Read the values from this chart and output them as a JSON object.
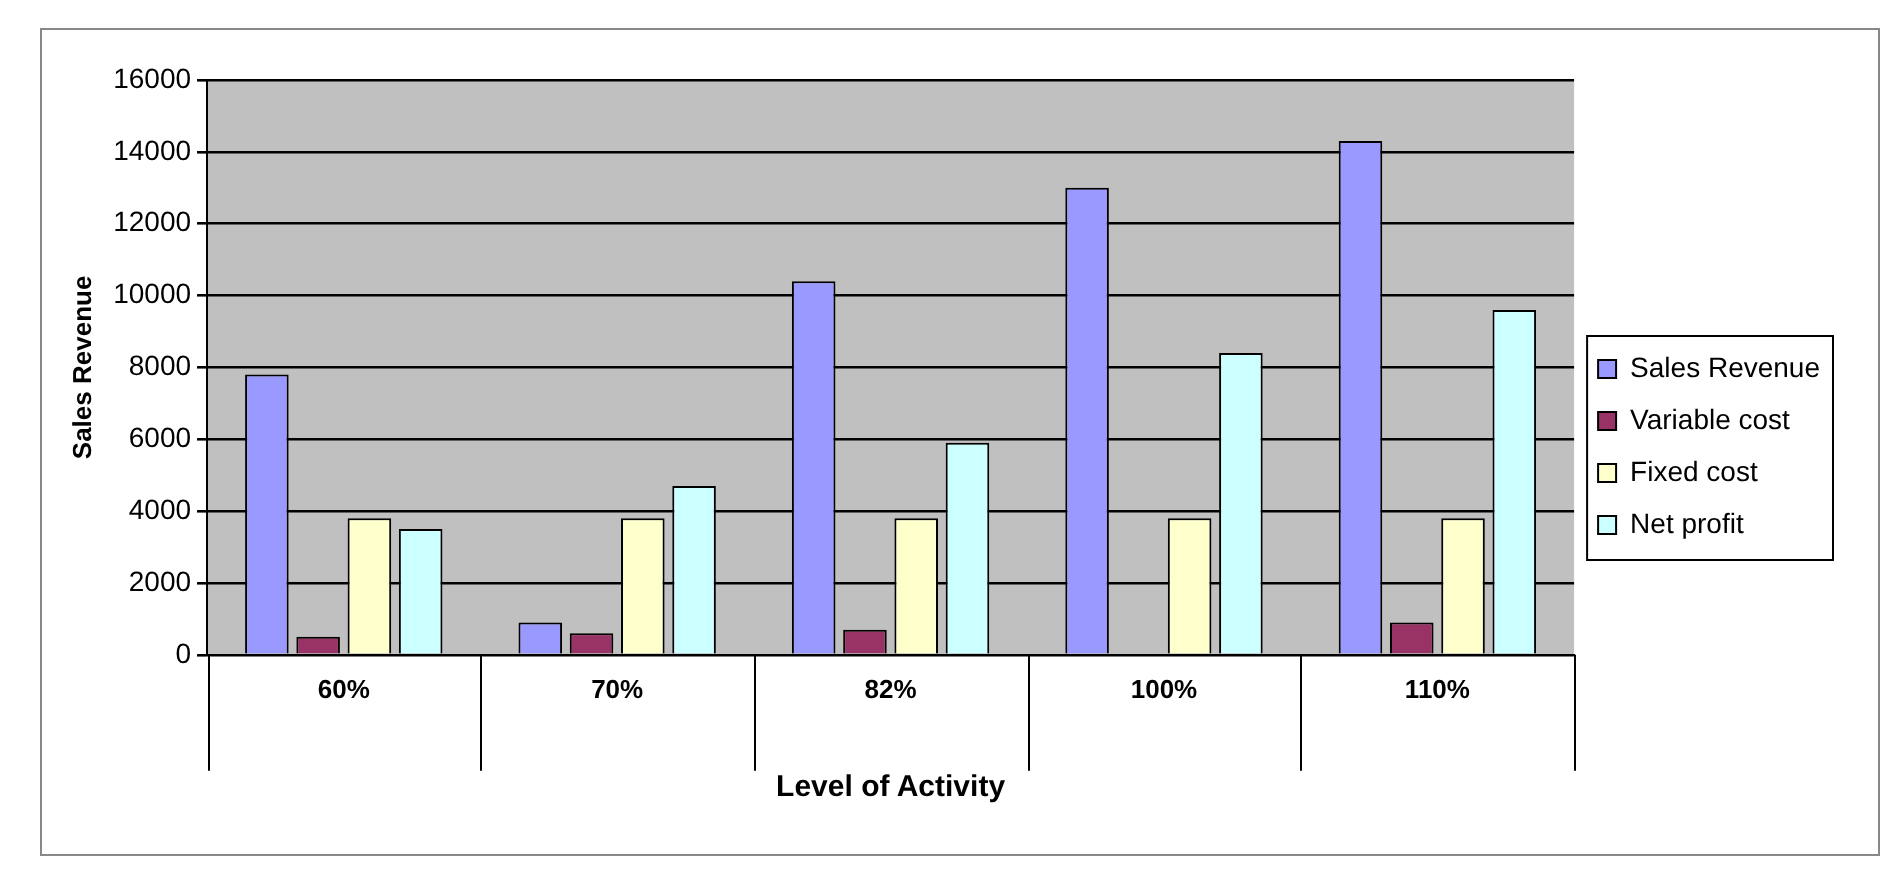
{
  "chart_data": {
    "type": "bar",
    "xlabel": "Level of Activity",
    "ylabel": "Sales Revenue",
    "categories": [
      "60%",
      "70%",
      "82%",
      "100%",
      "110%"
    ],
    "series": [
      {
        "name": "Sales Revenue",
        "color": "#9999ff",
        "values": [
          7800,
          900,
          10400,
          13000,
          14300
        ]
      },
      {
        "name": "Variable cost",
        "color": "#993366",
        "values": [
          500,
          600,
          700,
          0,
          900
        ]
      },
      {
        "name": "Fixed cost",
        "color": "#ffffcc",
        "values": [
          3800,
          3800,
          3800,
          3800,
          3800
        ]
      },
      {
        "name": "Net profit",
        "color": "#ccffff",
        "values": [
          3500,
          4700,
          5900,
          8400,
          9600
        ]
      }
    ],
    "ylim": [
      0,
      16000
    ],
    "yticks": [
      0,
      2000,
      4000,
      6000,
      8000,
      10000,
      12000,
      14000,
      16000
    ],
    "grid": "y",
    "legend": "right"
  }
}
